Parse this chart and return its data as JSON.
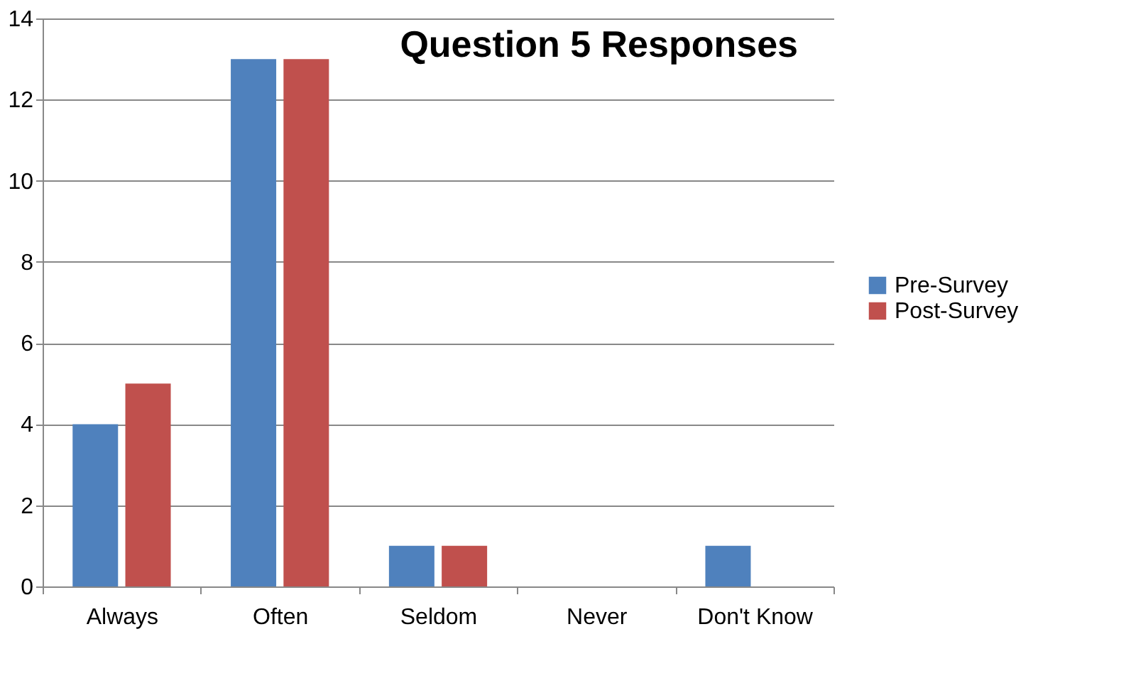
{
  "chart_data": {
    "type": "bar",
    "title": "Question 5 Responses",
    "categories": [
      "Always",
      "Often",
      "Seldom",
      "Never",
      "Don't Know"
    ],
    "series": [
      {
        "name": "Pre-Survey",
        "color": "#4f81bd",
        "values": [
          4,
          13,
          1,
          0,
          1
        ]
      },
      {
        "name": "Post-Survey",
        "color": "#c0504d",
        "values": [
          5,
          13,
          1,
          0,
          0
        ]
      }
    ],
    "ylim": [
      0,
      14
    ],
    "yticks": [
      0,
      2,
      4,
      6,
      8,
      10,
      12,
      14
    ],
    "grid": "y",
    "legend": "right"
  }
}
